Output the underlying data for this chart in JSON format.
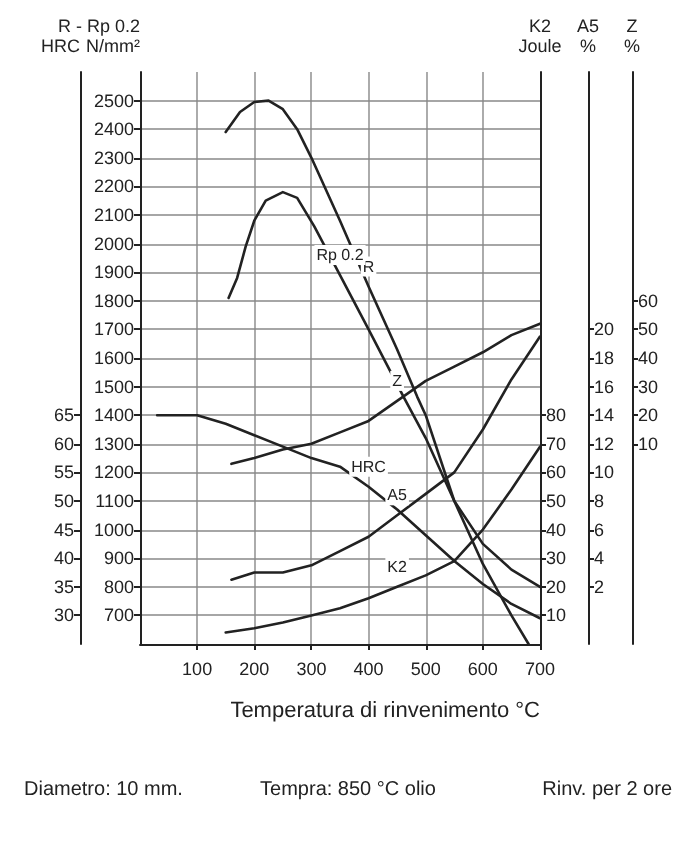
{
  "chart_data": [
    {
      "type": "line",
      "xlabel": "Temperatura di rinvenimento °C",
      "ylabel": "R - Rp 0.2\nN/mm²",
      "y2label": "HRC",
      "y3label": "K2\nJoule",
      "annotations": [
        "Diametro: 10 mm.",
        "Tempra: 850 °C olio",
        "Rinv. per 2 ore"
      ],
      "xlim": [
        0,
        700
      ],
      "xticks": [
        100,
        200,
        300,
        400,
        500,
        600,
        700
      ],
      "ylim": [
        600,
        2600
      ],
      "yticks": [
        700,
        800,
        900,
        1000,
        1100,
        1200,
        1300,
        1400,
        1500,
        1600,
        1700,
        1800,
        1900,
        2000,
        2100,
        2200,
        2300,
        2400,
        2500
      ],
      "y2lim": [
        25,
        125
      ],
      "y2ticks": [
        30,
        35,
        40,
        45,
        50,
        55,
        60,
        65
      ],
      "y3lim": [
        0,
        200
      ],
      "y3ticks": [
        10,
        20,
        30,
        40,
        50,
        60,
        70,
        80
      ],
      "grid": true,
      "legend": false,
      "marker": "none",
      "line_style": "solid",
      "series": [
        {
          "name": "R",
          "color": "#222222",
          "x": [
            150,
            175,
            200,
            225,
            250,
            275,
            300,
            350,
            400,
            450,
            485,
            500,
            550,
            600,
            650,
            700
          ],
          "values": [
            2390,
            2460,
            2495,
            2500,
            2470,
            2400,
            2300,
            2080,
            1850,
            1630,
            1465,
            1400,
            1100,
            950,
            860,
            800
          ]
        },
        {
          "name": "Rp 0.2",
          "color": "#222222",
          "x": [
            155,
            170,
            185,
            200,
            220,
            250,
            275,
            305,
            350,
            400,
            461,
            500,
            550,
            600,
            650,
            680
          ],
          "values": [
            1810,
            1880,
            1990,
            2080,
            2150,
            2180,
            2160,
            2060,
            1890,
            1700,
            1465,
            1320,
            1100,
            880,
            700,
            600
          ]
        },
        {
          "name": "HRC",
          "color": "#222222",
          "axis": "y2",
          "x": [
            30,
            100,
            150,
            200,
            250,
            300,
            350,
            400,
            450,
            500,
            550,
            600,
            650,
            700
          ],
          "values": [
            65,
            65,
            63.5,
            61.5,
            59.5,
            57.5,
            56,
            52.5,
            48.5,
            44,
            39.5,
            35.5,
            32,
            29.5
          ]
        },
        {
          "name": "K2",
          "color": "#222222",
          "axis": "y3",
          "x": [
            150,
            200,
            250,
            300,
            350,
            400,
            450,
            500,
            550,
            600,
            650,
            700
          ],
          "values": [
            4,
            5.5,
            7.5,
            10,
            12.5,
            16,
            20,
            24,
            29,
            40,
            54,
            69
          ]
        }
      ]
    },
    {
      "type": "line",
      "ylabel": "A5\n%",
      "y2label": "Z\n%",
      "xlim": [
        0,
        700
      ],
      "tick_labels": "y",
      "ylim": [
        -2,
        38
      ],
      "yticks": [
        2,
        4,
        6,
        8,
        10,
        12,
        14,
        16,
        18,
        20
      ],
      "y2lim": [
        -60,
        140
      ],
      "y2ticks": [
        10,
        20,
        30,
        40,
        50,
        60
      ],
      "legend": false,
      "marker": "none",
      "line_style": "solid",
      "series": [
        {
          "name": "Z",
          "color": "#222222",
          "axis": "y2",
          "x": [
            160,
            200,
            250,
            300,
            350,
            400,
            450,
            500,
            550,
            600,
            650,
            700
          ],
          "values": [
            3,
            5,
            8,
            10,
            14,
            18,
            25,
            32,
            37,
            42,
            48,
            52
          ]
        },
        {
          "name": "A5",
          "color": "#222222",
          "x": [
            160,
            200,
            250,
            300,
            350,
            400,
            450,
            500,
            550,
            600,
            650,
            700
          ],
          "values": [
            2.5,
            3,
            3,
            3.5,
            4.5,
            5.5,
            7,
            8.5,
            10,
            13,
            16.5,
            19.5
          ]
        }
      ]
    }
  ]
}
